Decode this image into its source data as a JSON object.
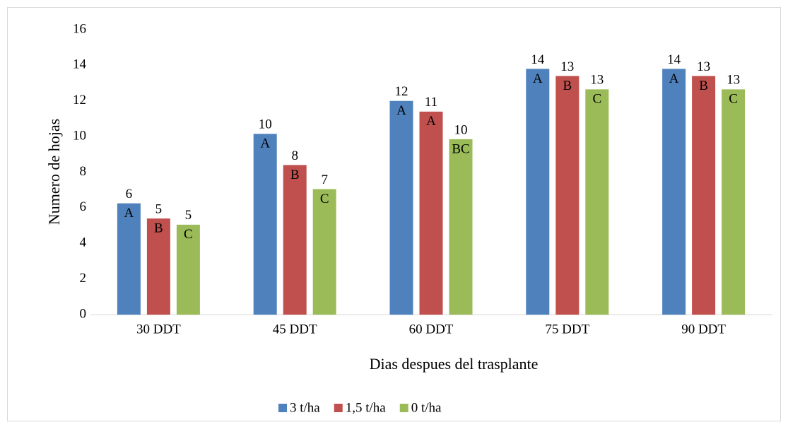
{
  "chart_data": {
    "type": "bar",
    "x_label": "Dias despues del trasplante",
    "y_label": "Numero de hojas",
    "categories": [
      "30 DDT",
      "45 DDT",
      "60 DDT",
      "75 DDT",
      "90 DDT"
    ],
    "series": [
      {
        "name": "3 t/ha",
        "color": "#4f81bd",
        "values": [
          6.25,
          10.15,
          12.0,
          13.8,
          13.8
        ],
        "value_labels": [
          "6",
          "10",
          "12",
          "14",
          "14"
        ],
        "annotations": [
          "A",
          "A",
          "A",
          "A",
          "A"
        ]
      },
      {
        "name": "1,5 t/ha",
        "color": "#c0504d",
        "values": [
          5.4,
          8.4,
          11.4,
          13.4,
          13.4
        ],
        "value_labels": [
          "5",
          "8",
          "11",
          "13",
          "13"
        ],
        "annotations": [
          "B",
          "B",
          "A",
          "B",
          "B"
        ]
      },
      {
        "name": "0 t/ha",
        "color": "#9bbb59",
        "values": [
          5.05,
          7.05,
          9.85,
          12.65,
          12.65
        ],
        "value_labels": [
          "5",
          "7",
          "10",
          "13",
          "13"
        ],
        "annotations": [
          "C",
          "C",
          "BC",
          "C",
          "C"
        ]
      }
    ],
    "ylim": [
      0,
      16
    ],
    "yticks": [
      0,
      2,
      4,
      6,
      8,
      10,
      12,
      14,
      16
    ],
    "grid": false,
    "legend": "bottom"
  }
}
